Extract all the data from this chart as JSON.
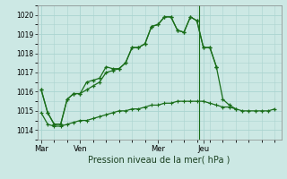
{
  "title": "Pression niveau de la mer( hPa )",
  "bg_color": "#cce8e4",
  "grid_color": "#aad4d0",
  "line_color": "#1a6e1a",
  "ylim": [
    1013.5,
    1020.5
  ],
  "yticks": [
    1014,
    1015,
    1016,
    1017,
    1018,
    1019,
    1020
  ],
  "day_labels": [
    "Mar",
    "Ven",
    "Mer",
    "Jeu"
  ],
  "day_positions": [
    0,
    3,
    9,
    12.5
  ],
  "num_points": 28,
  "line1_x": [
    0,
    0.5,
    1.0,
    1.5,
    2.0,
    2.5,
    3.0,
    3.5,
    4.0,
    4.5,
    5.0,
    5.5,
    6.0,
    6.5,
    7.0,
    7.5,
    8.0,
    8.5,
    9.0,
    9.5,
    10.0,
    10.5,
    11.0,
    11.5,
    12.0,
    12.5,
    13.0,
    13.5
  ],
  "line1_y": [
    1016.1,
    1014.9,
    1014.3,
    1014.3,
    1015.6,
    1015.9,
    1015.9,
    1016.5,
    1016.6,
    1016.7,
    1017.3,
    1017.2,
    1017.2,
    1017.5,
    1018.3,
    1018.3,
    1018.5,
    1019.4,
    1019.5,
    1019.9,
    1019.9,
    1019.2,
    1019.1,
    1019.9,
    1019.7,
    1018.3,
    1018.3,
    1017.3
  ],
  "line2_x": [
    0,
    0.5,
    1.0,
    1.5,
    2.0,
    2.5,
    3.0,
    3.5,
    4.0,
    4.5,
    5.0,
    5.5,
    6.0,
    6.5,
    7.0,
    7.5,
    8.0,
    8.5,
    9.0,
    9.5,
    10.0,
    10.5,
    11.0,
    11.5,
    12.0,
    12.5,
    13.0,
    13.5
  ],
  "line2_y": [
    1016.1,
    1014.9,
    1014.3,
    1014.3,
    1015.6,
    1015.9,
    1015.9,
    1016.1,
    1016.3,
    1016.5,
    1017.0,
    1017.1,
    1017.2,
    1017.5,
    1018.3,
    1018.3,
    1018.5,
    1019.4,
    1019.5,
    1019.9,
    1019.9,
    1019.2,
    1019.1,
    1019.9,
    1019.7,
    1018.3,
    1018.3,
    1017.3
  ],
  "line3_x": [
    0,
    0.5,
    1.0,
    1.5,
    2.0,
    2.5,
    3.0,
    3.5,
    4.0,
    4.5,
    5.0,
    5.5,
    6.0,
    6.5,
    7.0,
    7.5,
    8.0,
    8.5,
    9.0,
    9.5,
    10.0,
    10.5,
    11.0,
    11.5,
    12.0,
    12.5,
    13.0,
    13.5,
    14.0,
    14.5,
    15.0
  ],
  "line3_y": [
    1014.9,
    1014.3,
    1014.2,
    1014.2,
    1014.3,
    1014.4,
    1014.5,
    1014.5,
    1014.6,
    1014.7,
    1014.8,
    1014.9,
    1015.0,
    1015.0,
    1015.1,
    1015.1,
    1015.2,
    1015.3,
    1015.3,
    1015.4,
    1015.4,
    1015.5,
    1015.5,
    1015.5,
    1015.5,
    1015.5,
    1015.4,
    1015.3,
    1015.2,
    1015.2,
    1015.1
  ],
  "line4_x": [
    13.5,
    14.0,
    14.5,
    15.0,
    15.5,
    16.0,
    16.5,
    17.0,
    17.5,
    18.0
  ],
  "line4_y": [
    1017.3,
    1015.6,
    1015.3,
    1015.1,
    1015.0,
    1015.0,
    1015.0,
    1015.0,
    1015.0,
    1015.1
  ],
  "vline_x": 12.2,
  "xlim": [
    -0.3,
    18.5
  ]
}
